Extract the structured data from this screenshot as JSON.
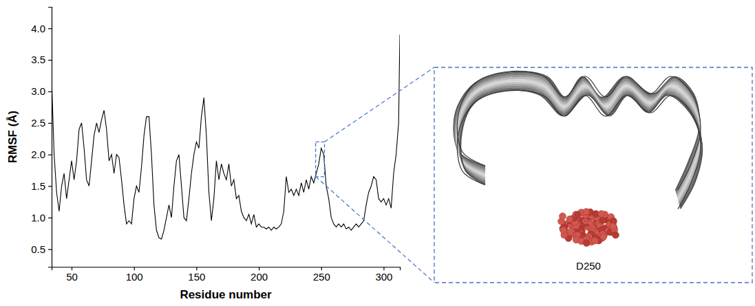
{
  "chart_data": {
    "type": "line",
    "x_label": "Residue number",
    "y_label": "RMSF (Å)",
    "color": "#000000",
    "xlim": [
      34,
      313
    ],
    "xticks": [
      50,
      100,
      150,
      200,
      250,
      300
    ],
    "ylim": [
      0.22,
      4.34
    ],
    "yticks": [
      0.5,
      {
        "value": 1.0,
        "label": "1.0"
      },
      1.5,
      {
        "value": 2.0,
        "label": "2.0"
      },
      2.5,
      {
        "value": 3.0,
        "label": "3.0"
      },
      3.5,
      {
        "value": 4.0,
        "label": "4.0"
      }
    ],
    "grid": false,
    "x": [
      34,
      36,
      38,
      40,
      42,
      44,
      46,
      48,
      50,
      52,
      54,
      56,
      58,
      60,
      62,
      64,
      66,
      68,
      70,
      72,
      74,
      76,
      78,
      80,
      82,
      84,
      86,
      88,
      90,
      92,
      94,
      96,
      98,
      100,
      102,
      104,
      106,
      108,
      110,
      112,
      114,
      116,
      118,
      120,
      122,
      124,
      126,
      128,
      130,
      132,
      134,
      136,
      138,
      140,
      142,
      144,
      146,
      148,
      150,
      152,
      154,
      156,
      158,
      160,
      162,
      164,
      166,
      168,
      170,
      172,
      174,
      176,
      178,
      180,
      182,
      184,
      186,
      188,
      190,
      192,
      194,
      196,
      198,
      200,
      202,
      204,
      206,
      208,
      210,
      212,
      214,
      216,
      218,
      220,
      222,
      224,
      226,
      228,
      230,
      232,
      234,
      236,
      238,
      240,
      242,
      244,
      246,
      248,
      250,
      252,
      254,
      256,
      258,
      260,
      262,
      264,
      266,
      268,
      270,
      272,
      274,
      276,
      278,
      280,
      282,
      284,
      286,
      288,
      290,
      292,
      294,
      296,
      298,
      300,
      302,
      304,
      306,
      308,
      310,
      312,
      313
    ],
    "values": [
      3.2,
      2.0,
      1.4,
      1.1,
      1.5,
      1.7,
      1.3,
      1.6,
      1.9,
      1.6,
      1.9,
      2.4,
      2.5,
      2.1,
      1.6,
      1.5,
      1.9,
      2.3,
      2.5,
      2.35,
      2.55,
      2.7,
      2.4,
      1.9,
      2.0,
      1.7,
      2.0,
      1.95,
      1.6,
      1.2,
      0.9,
      0.95,
      0.9,
      1.3,
      1.5,
      1.4,
      1.8,
      2.3,
      2.6,
      2.6,
      2.0,
      1.2,
      0.8,
      0.68,
      0.66,
      0.8,
      1.0,
      1.2,
      1.0,
      1.5,
      1.9,
      2.0,
      1.5,
      1.0,
      0.95,
      1.3,
      1.7,
      2.0,
      2.2,
      2.1,
      2.6,
      2.9,
      2.3,
      1.4,
      0.95,
      1.3,
      1.9,
      1.6,
      1.85,
      1.7,
      1.6,
      1.85,
      1.5,
      1.6,
      1.3,
      1.35,
      1.1,
      1.0,
      0.95,
      1.05,
      0.9,
      1.05,
      0.85,
      0.9,
      0.85,
      0.85,
      0.82,
      0.85,
      0.8,
      0.85,
      0.82,
      0.85,
      0.9,
      1.1,
      1.65,
      1.4,
      1.45,
      1.35,
      1.45,
      1.35,
      1.55,
      1.4,
      1.6,
      1.45,
      1.65,
      1.55,
      1.7,
      1.85,
      2.1,
      2.0,
      1.5,
      1.3,
      1.0,
      0.9,
      0.85,
      0.9,
      0.85,
      0.9,
      0.82,
      0.85,
      0.8,
      0.85,
      0.9,
      0.85,
      0.9,
      0.95,
      1.2,
      1.4,
      1.5,
      1.65,
      1.6,
      1.3,
      1.25,
      1.3,
      1.2,
      1.3,
      1.15,
      1.7,
      2.0,
      2.5,
      3.9
    ],
    "annotations": [
      {
        "text": "D250",
        "x_range": [
          245.5,
          252.6
        ],
        "y_range": [
          1.65,
          2.2
        ]
      }
    ]
  }
}
